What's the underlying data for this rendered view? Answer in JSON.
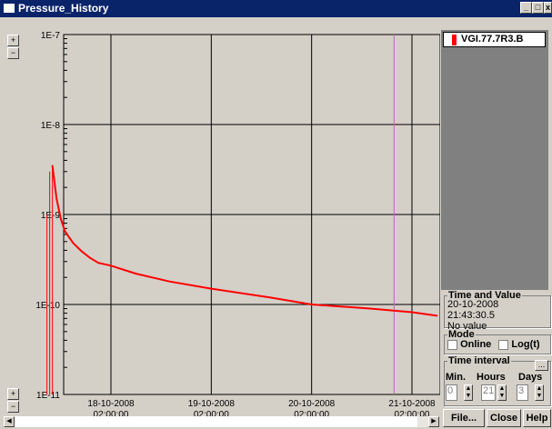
{
  "window": {
    "title": "Pressure_History"
  },
  "legend": {
    "items": [
      {
        "label": "VGI.77.7R3.B",
        "color": "#ff0000"
      }
    ]
  },
  "time_and_value": {
    "title": "Time and Value",
    "timestamp": "20-10-2008 21:43:30.5",
    "value": "No value"
  },
  "mode": {
    "title": "Mode",
    "online_label": "Online",
    "log_label": "Log(t)"
  },
  "time_interval": {
    "title": "Time interval",
    "more": "...",
    "min_label": "Min.",
    "hours_label": "Hours",
    "days_label": "Days",
    "min_value": "0",
    "hours_value": "21",
    "days_value": "3"
  },
  "buttons": {
    "file": "File...",
    "close": "Close",
    "help": "Help"
  },
  "chart_data": {
    "type": "line",
    "y_scale": "log",
    "ylim": [
      1e-11,
      1e-07
    ],
    "y_ticks": [
      "1E-7",
      "1E-8",
      "1E-9",
      "1E-10",
      "1E-11"
    ],
    "x_ticks": [
      {
        "date": "18-10-2008",
        "time": "02:00:00"
      },
      {
        "date": "19-10-2008",
        "time": "02:00:00"
      },
      {
        "date": "20-10-2008",
        "time": "02:00:00"
      },
      {
        "date": "21-10-2008",
        "time": "02:00:00"
      }
    ],
    "grid": true,
    "cursor_date": "20-10-2008 21:43:30.5",
    "series": [
      {
        "name": "VGI.77.7R3.B",
        "color": "#ff0000",
        "x": [
          "17-10-2008 12:00",
          "17-10-2008 13:00",
          "17-10-2008 14:00",
          "17-10-2008 15:00",
          "17-10-2008 17:00",
          "17-10-2008 19:00",
          "17-10-2008 21:00",
          "17-10-2008 23:00",
          "18-10-2008 02:00",
          "18-10-2008 08:00",
          "18-10-2008 16:00",
          "19-10-2008 02:00",
          "19-10-2008 16:00",
          "20-10-2008 02:00",
          "20-10-2008 16:00",
          "21-10-2008 02:00",
          "21-10-2008 08:00"
        ],
        "y": [
          3.5e-09,
          1.5e-09,
          9e-10,
          6.5e-10,
          4.8e-10,
          3.9e-10,
          3.3e-10,
          2.9e-10,
          2.7e-10,
          2.2e-10,
          1.8e-10,
          1.5e-10,
          1.2e-10,
          1e-10,
          9e-11,
          8.2e-11,
          7.5e-11
        ]
      }
    ]
  }
}
